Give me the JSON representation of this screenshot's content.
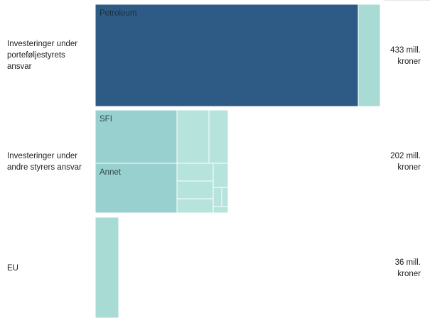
{
  "colors": {
    "dark": "#2d5b86",
    "light": "#a7dbd4",
    "mid": "#97d0ce",
    "pale": "#b6e3dc",
    "tile_border": "#ffffff",
    "dark_text": "#1d2f3f",
    "light_text": "#2e4a4a"
  },
  "chart_data": {
    "type": "treemap",
    "unit": "mill. kroner",
    "rows": [
      {
        "label_lines": [
          "Investeringer under",
          "porteføljestyrets",
          "ansvar"
        ],
        "total_lines": [
          "433 mill.",
          "kroner"
        ],
        "total": 433,
        "tiles": [
          {
            "name": "Petroleum",
            "label": "Petroleum",
            "shade": "dark"
          },
          {
            "name": "other",
            "label": "",
            "shade": "light"
          }
        ]
      },
      {
        "label_lines": [
          "Investeringer under",
          "andre styrers ansvar"
        ],
        "total_lines": [
          "202 mill.",
          "kroner"
        ],
        "total": 202,
        "tiles": [
          {
            "name": "SFI",
            "label": "SFI",
            "shade": "mid"
          },
          {
            "name": "Annet",
            "label": "Annet",
            "shade": "mid"
          },
          {
            "name": "small-1",
            "label": "",
            "shade": "pale"
          },
          {
            "name": "small-2",
            "label": "",
            "shade": "pale"
          },
          {
            "name": "small-3",
            "label": "",
            "shade": "pale"
          },
          {
            "name": "small-4",
            "label": "",
            "shade": "pale"
          },
          {
            "name": "small-5",
            "label": "",
            "shade": "pale"
          },
          {
            "name": "small-6",
            "label": "",
            "shade": "pale"
          },
          {
            "name": "small-7",
            "label": "",
            "shade": "pale"
          },
          {
            "name": "small-8",
            "label": "",
            "shade": "pale"
          },
          {
            "name": "small-9",
            "label": "",
            "shade": "pale"
          }
        ]
      },
      {
        "label_lines": [
          "EU"
        ],
        "total_lines": [
          "36 mill.",
          "kroner"
        ],
        "total": 36,
        "tiles": [
          {
            "name": "EU",
            "label": "",
            "shade": "light"
          }
        ]
      }
    ]
  }
}
